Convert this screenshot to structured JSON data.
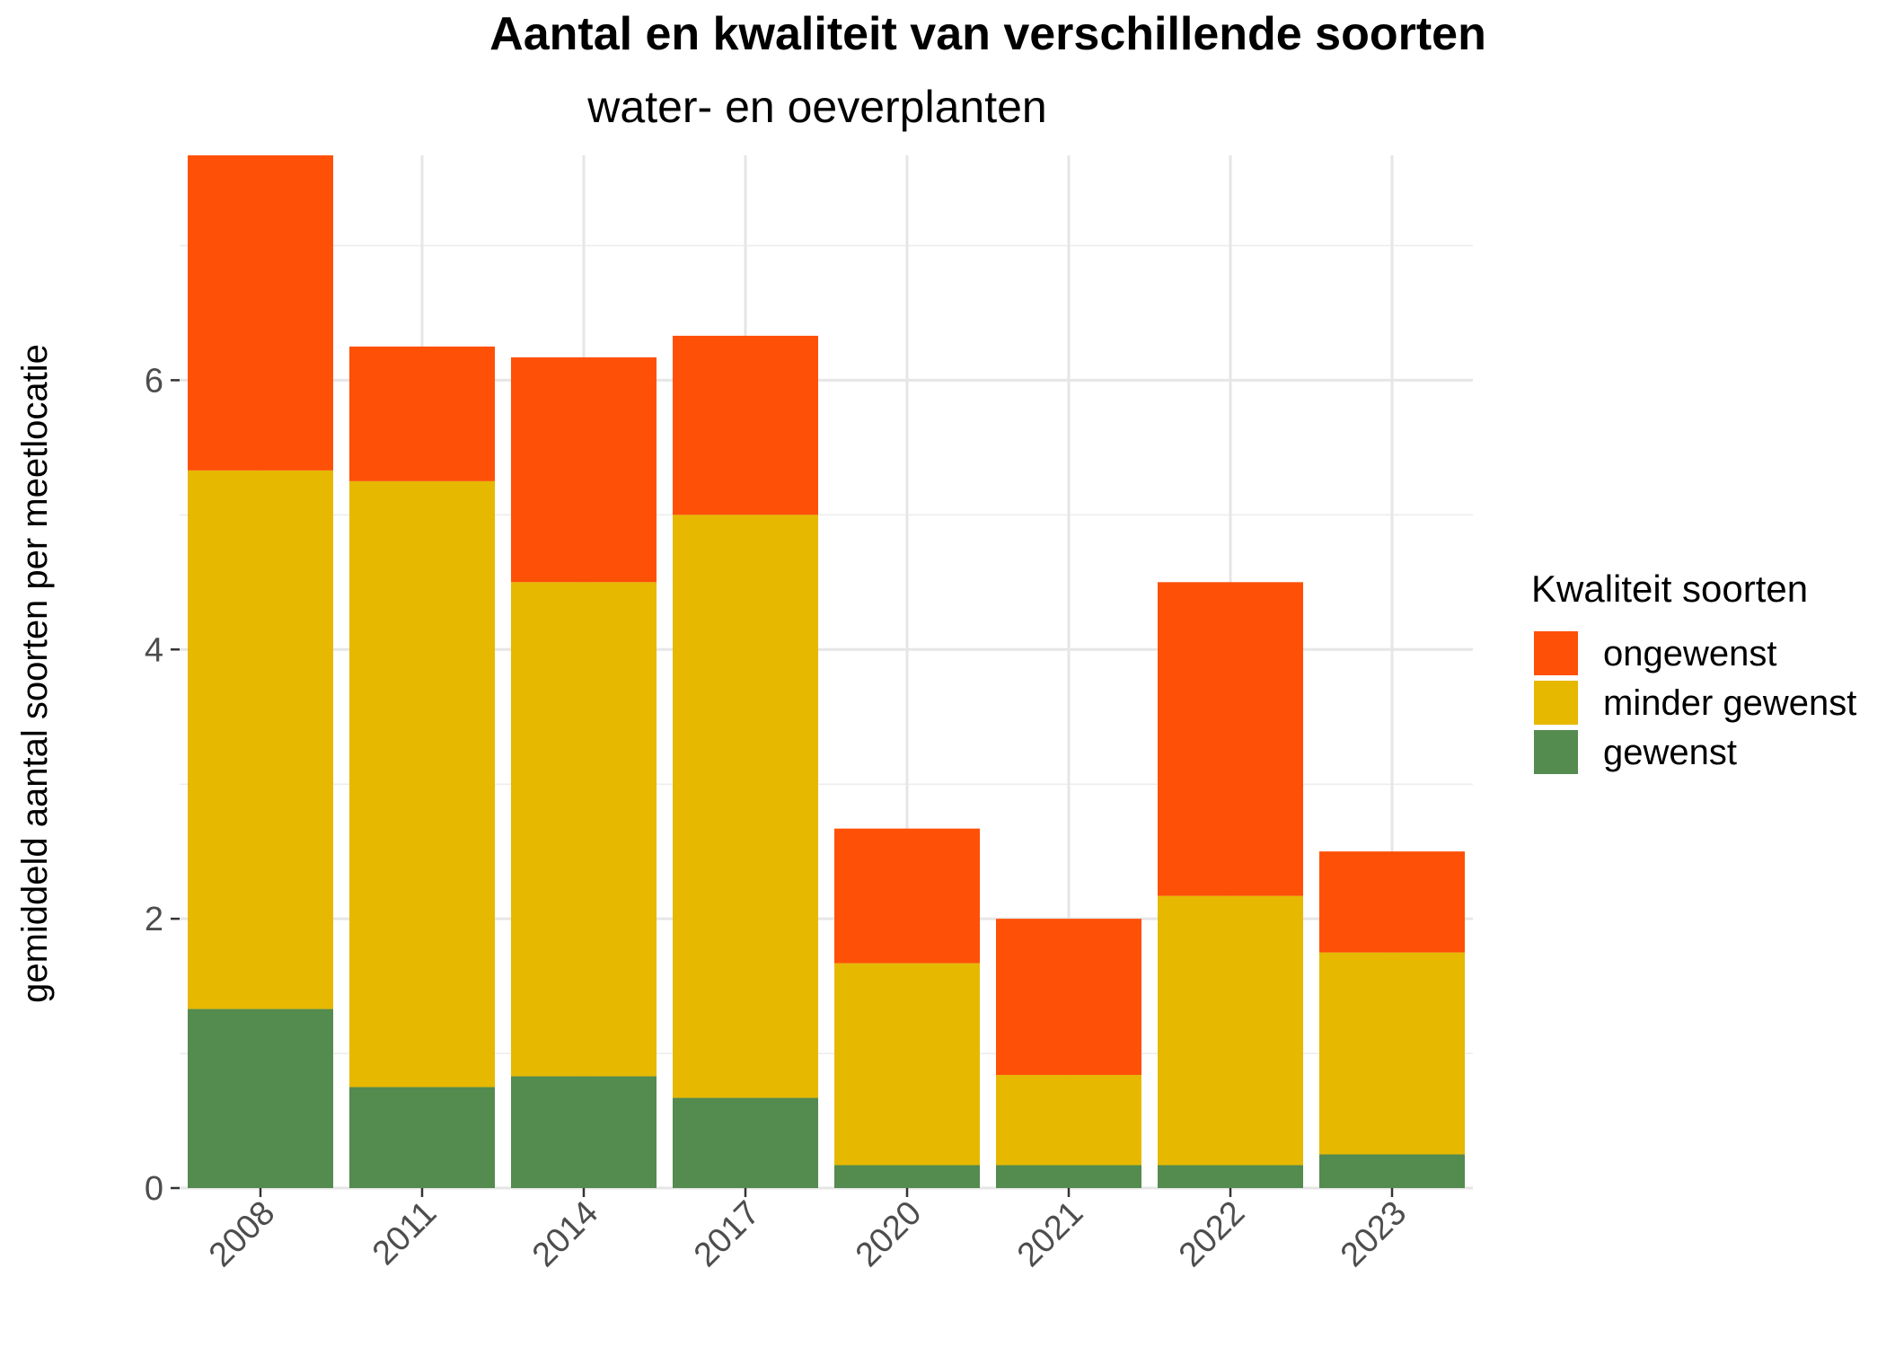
{
  "chart_data": {
    "type": "bar",
    "stacked": true,
    "title": "Aantal en kwaliteit van verschillende soorten",
    "subtitle": "water- en oeverplanten",
    "xlabel": "",
    "ylabel": "gemiddeld aantal soorten per meetlocatie",
    "categories": [
      "2008",
      "2011",
      "2014",
      "2017",
      "2020",
      "2021",
      "2022",
      "2023"
    ],
    "series": [
      {
        "name": "gewenst",
        "color": "#548B4F",
        "values": [
          1.33,
          0.75,
          0.83,
          0.67,
          0.17,
          0.17,
          0.17,
          0.25
        ]
      },
      {
        "name": "minder gewenst",
        "color": "#E6B800",
        "values": [
          4.0,
          4.5,
          3.67,
          4.33,
          1.5,
          0.67,
          2.0,
          1.5
        ]
      },
      {
        "name": "ongewenst",
        "color": "#FF5007",
        "values": [
          2.34,
          1.0,
          1.67,
          1.33,
          1.0,
          1.16,
          2.33,
          0.75
        ]
      }
    ],
    "ylim": [
      0,
      7.67
    ],
    "yticks": [
      0,
      2,
      4,
      6
    ],
    "grid": true,
    "legend": {
      "title": "Kwaliteit soorten",
      "position": "right",
      "items": [
        {
          "label": "ongewenst",
          "color": "#FF5007"
        },
        {
          "label": "minder gewenst",
          "color": "#E6B800"
        },
        {
          "label": "gewenst",
          "color": "#548B4F"
        }
      ]
    }
  }
}
